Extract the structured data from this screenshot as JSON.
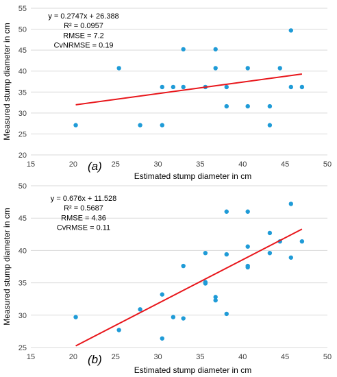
{
  "colors": {
    "points": "#1f9bd7",
    "trendline": "#e8161b",
    "grid": "#d9d9d9"
  },
  "chart_data": [
    {
      "type": "scatter",
      "panel_label": "(a)",
      "xlabel": "Estimated stump diameter in cm",
      "ylabel": "Measured stump diameter in cm",
      "xlim": [
        15,
        50
      ],
      "ylim": [
        20,
        55
      ],
      "xticks": [
        "15",
        "20",
        "25",
        "30",
        "35",
        "40",
        "45",
        "50"
      ],
      "yticks": [
        "20",
        "25",
        "30",
        "35",
        "40",
        "45",
        "50",
        "55"
      ],
      "grid": "horizontal",
      "annotations": [
        "y = 0.2747x + 26.388",
        "R² = 0.0957",
        "RMSE = 7.2",
        "CvNRMSE = 0.19"
      ],
      "trendline": {
        "slope": 0.2747,
        "intercept": 26.388,
        "x_range": [
          20.3,
          47
        ]
      },
      "points": [
        [
          20.3,
          27.1
        ],
        [
          25.4,
          40.7
        ],
        [
          27.9,
          27.1
        ],
        [
          30.5,
          36.2
        ],
        [
          30.5,
          27.1
        ],
        [
          31.8,
          36.2
        ],
        [
          33.0,
          45.2
        ],
        [
          33.0,
          36.2
        ],
        [
          35.6,
          36.2
        ],
        [
          36.8,
          45.2
        ],
        [
          36.8,
          40.7
        ],
        [
          38.1,
          36.2
        ],
        [
          38.1,
          31.6
        ],
        [
          40.6,
          40.7
        ],
        [
          40.6,
          31.6
        ],
        [
          43.2,
          31.6
        ],
        [
          43.2,
          27.1
        ],
        [
          44.4,
          40.7
        ],
        [
          45.7,
          49.7
        ],
        [
          45.7,
          36.2
        ],
        [
          47.0,
          36.2
        ]
      ]
    },
    {
      "type": "scatter",
      "panel_label": "(b)",
      "xlabel": "Estimated stump diameter in cm",
      "ylabel": "Measured stump diameter in cm",
      "xlim": [
        15,
        50
      ],
      "ylim": [
        25,
        50
      ],
      "xticks": [
        "15",
        "20",
        "25",
        "30",
        "35",
        "40",
        "45",
        "50"
      ],
      "yticks": [
        "25",
        "30",
        "35",
        "40",
        "45",
        "50"
      ],
      "grid": "horizontal",
      "annotations": [
        "y = 0.676x + 11.528",
        "R² = 0.5687",
        "RMSE = 4.36",
        "CvRMSE = 0.11"
      ],
      "trendline": {
        "slope": 0.676,
        "intercept": 11.528,
        "x_range": [
          20.3,
          47
        ]
      },
      "points": [
        [
          20.3,
          29.7
        ],
        [
          25.4,
          27.7
        ],
        [
          27.9,
          30.9
        ],
        [
          30.5,
          33.2
        ],
        [
          30.5,
          26.4
        ],
        [
          31.8,
          29.7
        ],
        [
          33.0,
          37.6
        ],
        [
          33.0,
          29.5
        ],
        [
          35.6,
          39.6
        ],
        [
          35.6,
          35.1
        ],
        [
          35.6,
          34.9
        ],
        [
          36.8,
          32.8
        ],
        [
          36.8,
          32.3
        ],
        [
          38.1,
          46.0
        ],
        [
          38.1,
          39.4
        ],
        [
          38.1,
          30.2
        ],
        [
          40.6,
          46.0
        ],
        [
          40.6,
          40.6
        ],
        [
          40.6,
          37.6
        ],
        [
          40.6,
          37.4
        ],
        [
          43.2,
          42.7
        ],
        [
          43.2,
          39.6
        ],
        [
          44.4,
          41.4
        ],
        [
          45.7,
          47.2
        ],
        [
          45.7,
          38.9
        ],
        [
          47.0,
          41.4
        ]
      ]
    }
  ]
}
